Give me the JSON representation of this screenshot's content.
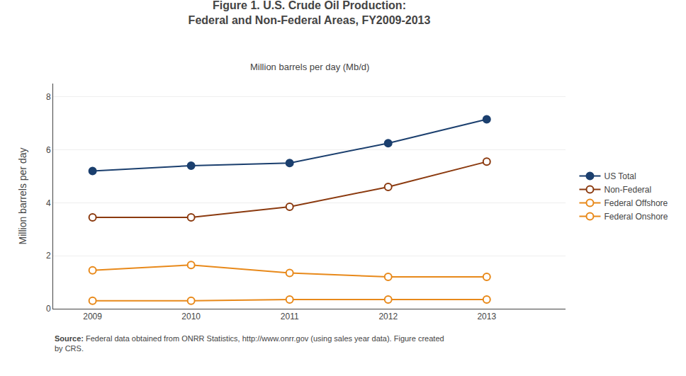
{
  "chart_data": {
    "type": "line",
    "title": "Figure 1. U.S. Crude Oil Production:\nFederal and Non-Federal Areas, FY2009-2013",
    "subtitle": "Million barrels per day (Mb/d)",
    "ylabel": "Million barrels per day",
    "annotations": [
      "Source: Federal data obtained from ONRR Statistics, http://www.onrr.gov (using sales year data). Figure created\nby CRS."
    ],
    "x": [
      2009,
      2010,
      2011,
      2012,
      2013
    ],
    "series": [
      {
        "name": "US Total",
        "color": "#1B3F6E",
        "marker": "circle",
        "values": [
          5.2,
          5.4,
          5.5,
          6.25,
          7.15
        ]
      },
      {
        "name": "Non-Federal",
        "color": "#8B3A0F",
        "marker": "circle-open",
        "values": [
          3.45,
          3.45,
          3.85,
          4.6,
          5.55
        ]
      },
      {
        "name": "Federal Offshore",
        "color": "#E8891A",
        "marker": "circle-open",
        "values": [
          1.45,
          1.65,
          1.35,
          1.2,
          1.2
        ]
      },
      {
        "name": "Federal Onshore",
        "color": "#E8891A",
        "marker": "circle-open",
        "values": [
          0.3,
          0.3,
          0.35,
          0.35,
          0.35
        ]
      }
    ],
    "xlim": [
      2008.6,
      2013.8
    ],
    "xticks": [
      2009,
      2010,
      2011,
      2012,
      2013
    ],
    "ylim": [
      0,
      8.5
    ],
    "yticks": [
      0,
      2,
      4,
      6,
      8
    ],
    "grid": true,
    "legend": "right"
  }
}
